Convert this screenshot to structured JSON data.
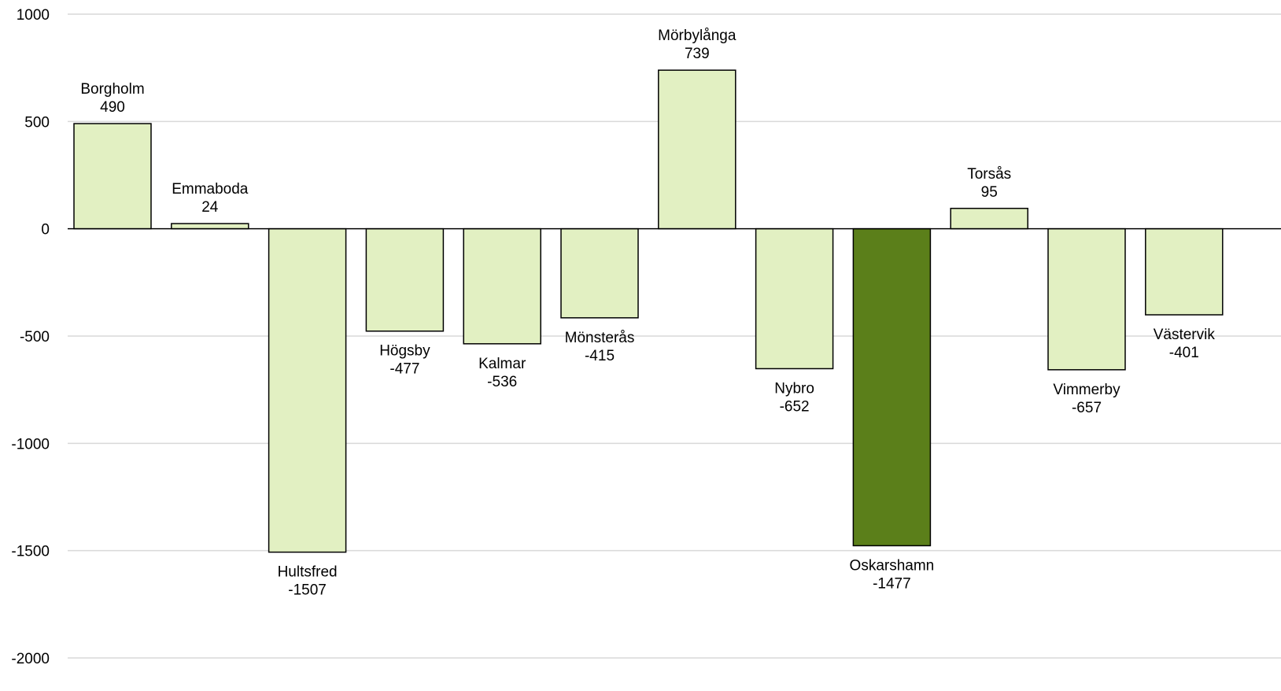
{
  "chart_data": {
    "type": "bar",
    "title": "",
    "xlabel": "",
    "ylabel": "",
    "ylim": [
      -2000,
      1000
    ],
    "yticks": [
      1000,
      500,
      0,
      -500,
      -1000,
      -1500,
      -2000
    ],
    "yticks_labels": [
      "1000",
      "500",
      "0",
      "-500",
      "-1000",
      "-1500",
      "-2000"
    ],
    "grid": true,
    "legend": "none",
    "categories": [
      "Borgholm",
      "Emmaboda",
      "Hultsfred",
      "Högsby",
      "Kalmar",
      "Mönsterås",
      "Mörbylånga",
      "Nybro",
      "Oskarshamn",
      "Torsås",
      "Vimmerby",
      "Västervik"
    ],
    "values": [
      490,
      24,
      -1507,
      -477,
      -536,
      -415,
      739,
      -652,
      -1477,
      95,
      -657,
      -401
    ],
    "value_labels": [
      "490",
      "24",
      "-1507",
      "-477",
      "-536",
      "-415",
      "739",
      "-652",
      "-1477",
      "95",
      "-657",
      "-401"
    ],
    "highlight_category": "Oskarshamn",
    "colors": {
      "bar": "#e2f0c2",
      "highlight": "#5b7f1a",
      "grid": "#d9d9d9",
      "axis": "#000000"
    }
  }
}
